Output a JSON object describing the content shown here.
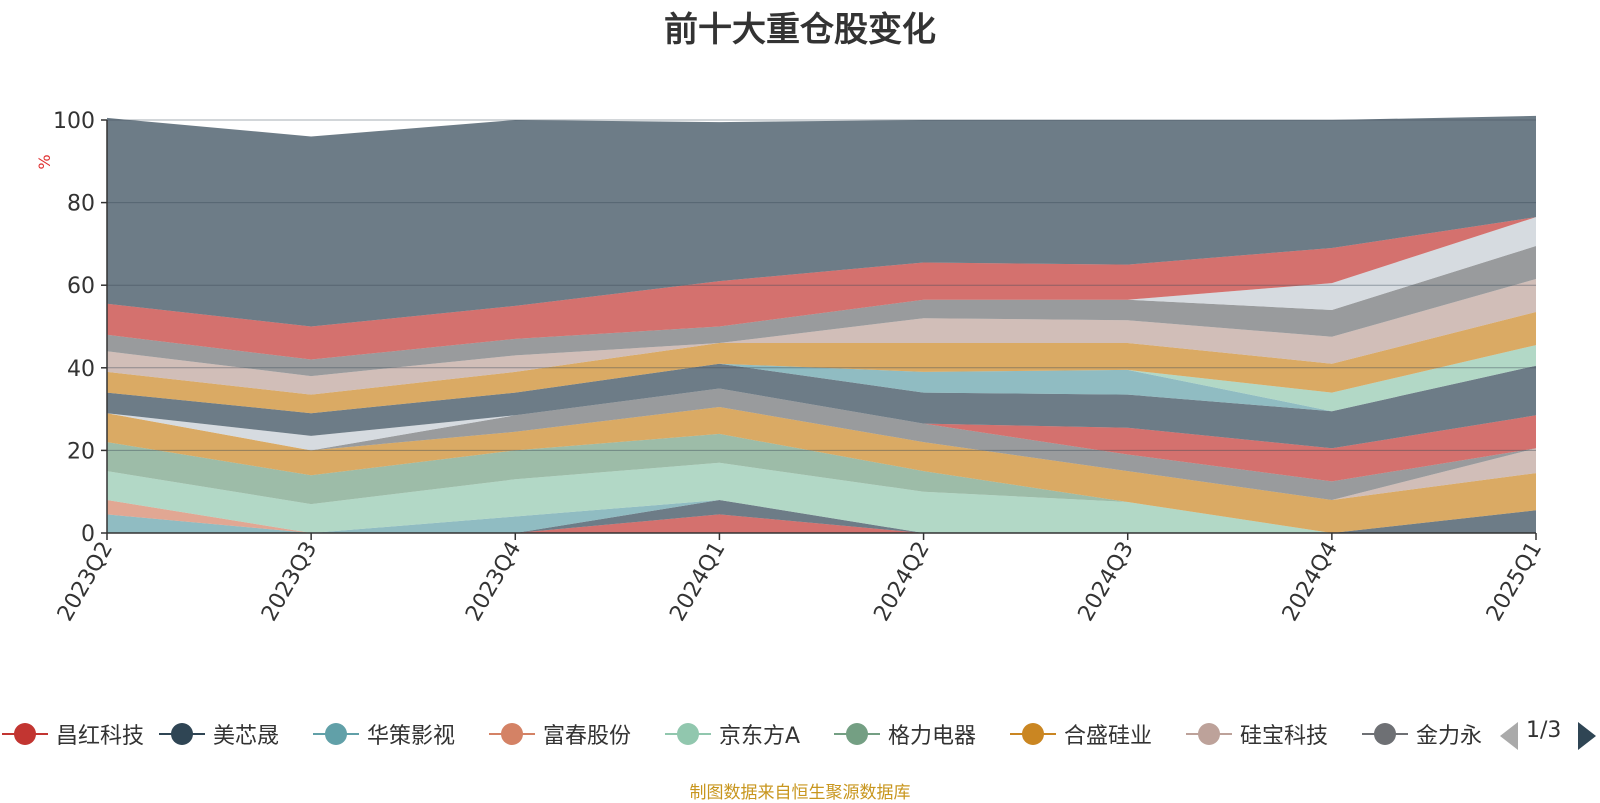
{
  "chart_data": {
    "type": "area",
    "title": "前十大重仓股变化",
    "ylabel": "%",
    "ylim": [
      0,
      100
    ],
    "yticks": [
      0,
      20,
      40,
      60,
      80,
      100
    ],
    "categories": [
      "2023Q2",
      "2023Q3",
      "2023Q4",
      "2024Q1",
      "2024Q2",
      "2024Q3",
      "2024Q4",
      "2025Q1"
    ],
    "stacked": true,
    "series": [
      {
        "name": "昌红科技",
        "color": "#c23531",
        "values": [
          0,
          0,
          0,
          4.5,
          0,
          0,
          0,
          0
        ]
      },
      {
        "name": "美芯晟",
        "color": "#2f4554",
        "values": [
          0,
          0,
          0,
          3.5,
          0,
          0,
          0,
          5.5
        ]
      },
      {
        "name": "华策影视",
        "color": "#61a0a8",
        "values": [
          4.5,
          0,
          4,
          0,
          0,
          0,
          0,
          0
        ]
      },
      {
        "name": "富春股份",
        "color": "#d48265",
        "values": [
          3.5,
          0,
          0,
          0,
          0,
          0,
          0,
          0
        ]
      },
      {
        "name": "京东方A",
        "color": "#91c7ae",
        "values": [
          7,
          7,
          9,
          9,
          10,
          7.5,
          0,
          0
        ]
      },
      {
        "name": "格力电器",
        "color": "#749f83",
        "values": [
          7,
          7,
          7,
          7,
          5,
          0,
          0,
          0
        ]
      },
      {
        "name": "合盛硅业",
        "color": "#ca8622",
        "values": [
          7,
          6,
          4.5,
          6.5,
          7,
          7.5,
          8,
          9
        ]
      },
      {
        "name": "硅宝科技",
        "color": "#bda29a",
        "values": [
          0,
          0,
          0,
          0,
          0,
          0,
          0,
          6
        ]
      },
      {
        "name": "金力永磁",
        "color": "#6e7074",
        "values": [
          0,
          0,
          4,
          4.5,
          4.5,
          4,
          4.5,
          0
        ]
      },
      {
        "name": "",
        "color": "#546570",
        "values": [
          0,
          0,
          0,
          0,
          0,
          0,
          0,
          0
        ]
      },
      {
        "name": "",
        "color": "#c4ccd3",
        "values": [
          0,
          3.5,
          0,
          0,
          0,
          0,
          0,
          0
        ]
      },
      {
        "name": "",
        "color": "#c23531",
        "values": [
          0,
          0,
          0,
          0,
          0,
          6.5,
          8,
          8
        ]
      },
      {
        "name": "",
        "color": "#2f4554",
        "values": [
          5,
          5.5,
          5.5,
          6,
          7.5,
          8,
          9,
          12
        ]
      },
      {
        "name": "",
        "color": "#61a0a8",
        "values": [
          0,
          0,
          0,
          0,
          5,
          6,
          0,
          0
        ]
      },
      {
        "name": "",
        "color": "#91c7ae",
        "values": [
          0,
          0,
          0,
          0,
          0,
          0,
          4.5,
          5
        ]
      },
      {
        "name": "",
        "color": "#ca8622",
        "values": [
          5,
          4.5,
          5,
          5,
          7,
          6.5,
          7,
          8
        ]
      },
      {
        "name": "",
        "color": "#bda29a",
        "values": [
          5,
          4.5,
          4,
          0,
          6,
          5.5,
          6.5,
          8
        ]
      },
      {
        "name": "",
        "color": "#6e7074",
        "values": [
          4,
          4,
          4,
          4,
          4.5,
          5,
          6.5,
          8
        ]
      },
      {
        "name": "",
        "color": "#c4ccd3",
        "values": [
          0,
          0,
          0,
          0,
          0,
          0,
          6.5,
          7
        ]
      },
      {
        "name": "",
        "color": "#c23531",
        "values": [
          7.5,
          8,
          8,
          11,
          9,
          8.5,
          8.5,
          0
        ]
      },
      {
        "name": "",
        "color": "#2f4554",
        "values": [
          45,
          46,
          45,
          38.5,
          34.5,
          35,
          31,
          24.5
        ]
      }
    ]
  },
  "legend": {
    "items": [
      {
        "name": "昌红科技",
        "color": "#c23531"
      },
      {
        "name": "美芯晟",
        "color": "#2f4554"
      },
      {
        "name": "华策影视",
        "color": "#61a0a8"
      },
      {
        "name": "富春股份",
        "color": "#d48265"
      },
      {
        "name": "京东方A",
        "color": "#91c7ae"
      },
      {
        "name": "格力电器",
        "color": "#749f83"
      },
      {
        "name": "合盛硅业",
        "color": "#ca8622"
      },
      {
        "name": "硅宝科技",
        "color": "#bda29a"
      },
      {
        "name": "金力永磁",
        "color": "#6e7074"
      }
    ],
    "page": "1/3"
  },
  "source": "制图数据来自恒生聚源数据库"
}
